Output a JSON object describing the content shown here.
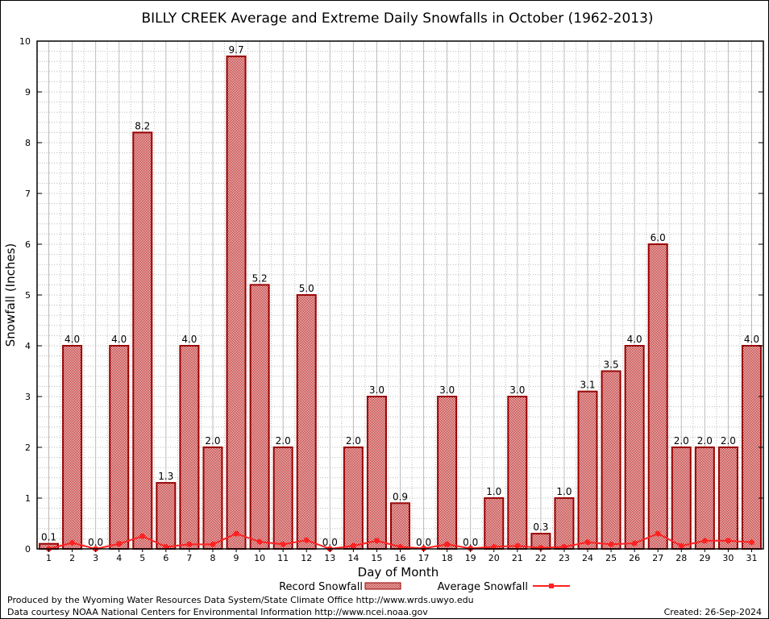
{
  "chart_data": {
    "type": "bar",
    "title": "BILLY CREEK Average and Extreme Daily Snowfalls in October (1962-2013)",
    "xlabel": "Day of Month",
    "ylabel": "Snowfall (Inches)",
    "ylim": [
      0,
      10
    ],
    "yticks": [
      "0",
      "1",
      "2",
      "3",
      "4",
      "5",
      "6",
      "7",
      "8",
      "9",
      "10"
    ],
    "grid": true,
    "legend_placement": "bottom-center",
    "categories": [
      "1",
      "2",
      "3",
      "4",
      "5",
      "6",
      "7",
      "8",
      "9",
      "10",
      "11",
      "12",
      "13",
      "14",
      "15",
      "16",
      "17",
      "18",
      "19",
      "20",
      "21",
      "22",
      "23",
      "24",
      "25",
      "26",
      "27",
      "28",
      "29",
      "30",
      "31"
    ],
    "series": [
      {
        "name": "Record Snowfall",
        "type": "bar",
        "color": "#aa0000",
        "values": [
          0.1,
          4.0,
          0.0,
          4.0,
          8.2,
          1.3,
          4.0,
          2.0,
          9.7,
          5.2,
          2.0,
          5.0,
          0.0,
          2.0,
          3.0,
          0.9,
          0.0,
          3.0,
          0.0,
          1.0,
          3.0,
          0.3,
          1.0,
          3.1,
          3.5,
          4.0,
          6.0,
          2.0,
          2.0,
          2.0,
          4.0
        ],
        "labels": [
          "0.1",
          "4.0",
          "0.0",
          "4.0",
          "8.2",
          "1.3",
          "4.0",
          "2.0",
          "9.7",
          "5.2",
          "2.0",
          "5.0",
          "0.0",
          "2.0",
          "3.0",
          "0.9",
          "0.0",
          "3.0",
          "0.0",
          "1.0",
          "3.0",
          "0.3",
          "1.0",
          "3.1",
          "3.5",
          "4.0",
          "6.0",
          "2.0",
          "2.0",
          "2.0",
          "4.0"
        ]
      },
      {
        "name": "Average Snowfall",
        "type": "line",
        "color": "#ff2222",
        "values": [
          0.0,
          0.12,
          0.0,
          0.1,
          0.25,
          0.04,
          0.09,
          0.09,
          0.3,
          0.14,
          0.09,
          0.17,
          0.0,
          0.06,
          0.16,
          0.04,
          0.01,
          0.09,
          0.01,
          0.04,
          0.06,
          0.02,
          0.04,
          0.13,
          0.09,
          0.11,
          0.3,
          0.06,
          0.16,
          0.16,
          0.13
        ]
      }
    ]
  },
  "footer": {
    "produced": "Produced by the Wyoming Water Resources Data System/State Climate Office http://www.wrds.uwyo.edu",
    "courtesy": "Data courtesy NOAA National Centers for Environmental Information http://www.ncei.noaa.gov",
    "created": "Created: 26-Sep-2024"
  }
}
